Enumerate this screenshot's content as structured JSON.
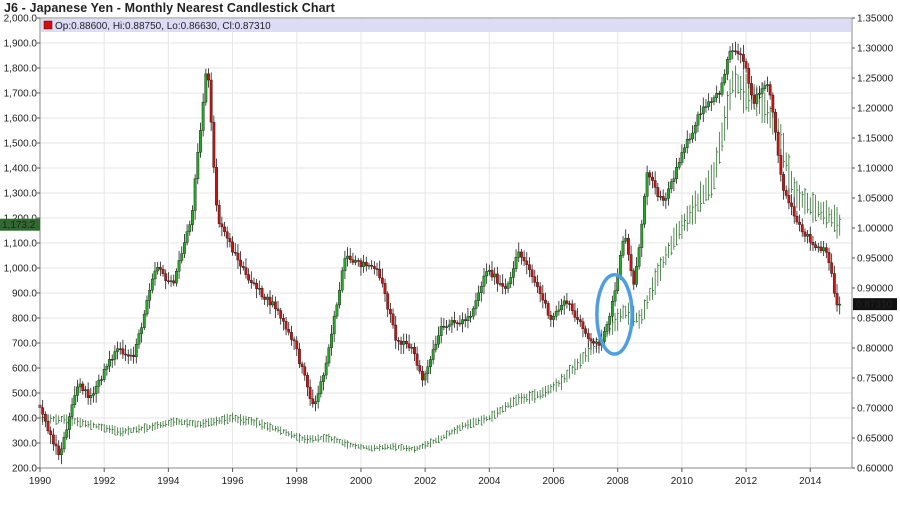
{
  "chart_data": {
    "type": "candlestick",
    "title": "J6 - Japanese Yen - Monthly Nearest Candlestick Chart",
    "info_bar": {
      "open_label": "Op:0.88600",
      "high_label": "Hi:0.88750",
      "low_label": "Lo:0.86630",
      "close_label": "Cl:0.87310"
    },
    "x_axis": {
      "ticks": [
        "1990",
        "1992",
        "1994",
        "1996",
        "1998",
        "2000",
        "2002",
        "2004",
        "2006",
        "2008",
        "2010",
        "2012",
        "2014"
      ],
      "range": [
        1990.0,
        2015.3
      ]
    },
    "y_left": {
      "ticks": [
        "200.0",
        "300.0",
        "400.0",
        "500.0",
        "600.0",
        "700.0",
        "800.0",
        "900.0",
        "1,000.0",
        "1,100.0",
        "1,200.0",
        "1,300.0",
        "1,400.0",
        "1,500.0",
        "1,600.0",
        "1,700.0",
        "1,800.0",
        "1,900.0",
        "2,000.0"
      ],
      "range": [
        200,
        2000
      ],
      "marker_label": "1,173.2",
      "marker_value": 1173.2
    },
    "y_right": {
      "ticks": [
        "0.60000",
        "0.65000",
        "0.70000",
        "0.75000",
        "0.80000",
        "0.85000",
        "0.90000",
        "0.95000",
        "1.00000",
        "1.05000",
        "1.10000",
        "1.15000",
        "1.20000",
        "1.25000",
        "1.30000",
        "1.35000"
      ],
      "range": [
        0.6,
        1.35
      ],
      "marker_label": "0.87310",
      "marker_value": 0.8731
    },
    "grid": true,
    "colors": {
      "up": "#22aa22",
      "down": "#cc1111",
      "overlay": "#2f6f2f",
      "highlight_ellipse": "#4f9fe0",
      "header_band": "#dcdcf6",
      "left_marker_bg": "#2e6b2e",
      "right_marker_bg": "#111111"
    },
    "yen_key_points": [
      [
        1990.0,
        0.705
      ],
      [
        1990.7,
        0.62
      ],
      [
        1991.3,
        0.745
      ],
      [
        1991.6,
        0.715
      ],
      [
        1992.5,
        0.8
      ],
      [
        1993.0,
        0.785
      ],
      [
        1993.7,
        0.935
      ],
      [
        1994.2,
        0.905
      ],
      [
        1994.8,
        1.015
      ],
      [
        1995.3,
        1.28
      ],
      [
        1995.6,
        1.02
      ],
      [
        1996.2,
        0.95
      ],
      [
        1996.8,
        0.9
      ],
      [
        1997.4,
        0.87
      ],
      [
        1998.0,
        0.81
      ],
      [
        1998.6,
        0.7
      ],
      [
        1999.0,
        0.77
      ],
      [
        1999.6,
        0.96
      ],
      [
        2000.0,
        0.94
      ],
      [
        2000.6,
        0.935
      ],
      [
        2001.2,
        0.81
      ],
      [
        2001.7,
        0.8
      ],
      [
        2002.0,
        0.745
      ],
      [
        2002.6,
        0.84
      ],
      [
        2003.0,
        0.84
      ],
      [
        2003.5,
        0.85
      ],
      [
        2004.0,
        0.93
      ],
      [
        2004.6,
        0.9
      ],
      [
        2005.0,
        0.96
      ],
      [
        2005.6,
        0.9
      ],
      [
        2006.0,
        0.85
      ],
      [
        2006.5,
        0.88
      ],
      [
        2007.0,
        0.83
      ],
      [
        2007.5,
        0.8
      ],
      [
        2007.9,
        0.87
      ],
      [
        2008.3,
        0.99
      ],
      [
        2008.6,
        0.9
      ],
      [
        2009.0,
        1.09
      ],
      [
        2009.5,
        1.04
      ],
      [
        2010.0,
        1.11
      ],
      [
        2010.7,
        1.2
      ],
      [
        2011.3,
        1.23
      ],
      [
        2011.6,
        1.3
      ],
      [
        2012.0,
        1.28
      ],
      [
        2012.3,
        1.21
      ],
      [
        2012.8,
        1.24
      ],
      [
        2013.2,
        1.07
      ],
      [
        2013.8,
        1.0
      ],
      [
        2014.2,
        0.97
      ],
      [
        2014.6,
        0.965
      ],
      [
        2014.9,
        0.8731
      ]
    ],
    "overlay_key_points": [
      [
        1990.0,
        395
      ],
      [
        1990.8,
        395
      ],
      [
        1991.5,
        375
      ],
      [
        1992.5,
        345
      ],
      [
        1993.3,
        360
      ],
      [
        1994.2,
        385
      ],
      [
        1995.0,
        375
      ],
      [
        1996.0,
        400
      ],
      [
        1996.8,
        380
      ],
      [
        1997.5,
        350
      ],
      [
        1998.2,
        315
      ],
      [
        1999.0,
        320
      ],
      [
        1999.7,
        290
      ],
      [
        2000.3,
        280
      ],
      [
        2001.0,
        285
      ],
      [
        2001.7,
        275
      ],
      [
        2002.5,
        320
      ],
      [
        2003.2,
        370
      ],
      [
        2004.0,
        400
      ],
      [
        2004.8,
        470
      ],
      [
        2005.6,
        495
      ],
      [
        2006.2,
        540
      ],
      [
        2006.7,
        610
      ],
      [
        2007.2,
        680
      ],
      [
        2007.8,
        760
      ],
      [
        2008.2,
        830
      ],
      [
        2008.7,
        790
      ],
      [
        2009.2,
        960
      ],
      [
        2009.8,
        1130
      ],
      [
        2010.4,
        1240
      ],
      [
        2011.0,
        1370
      ],
      [
        2011.6,
        1750
      ],
      [
        2012.0,
        1700
      ],
      [
        2012.5,
        1660
      ],
      [
        2013.0,
        1550
      ],
      [
        2013.5,
        1300
      ],
      [
        2014.0,
        1250
      ],
      [
        2014.6,
        1210
      ],
      [
        2014.9,
        1175
      ]
    ],
    "highlight": {
      "center_x": 2007.9,
      "center_y": 0.856,
      "rx_years": 0.55,
      "ry_value": 0.066
    }
  }
}
